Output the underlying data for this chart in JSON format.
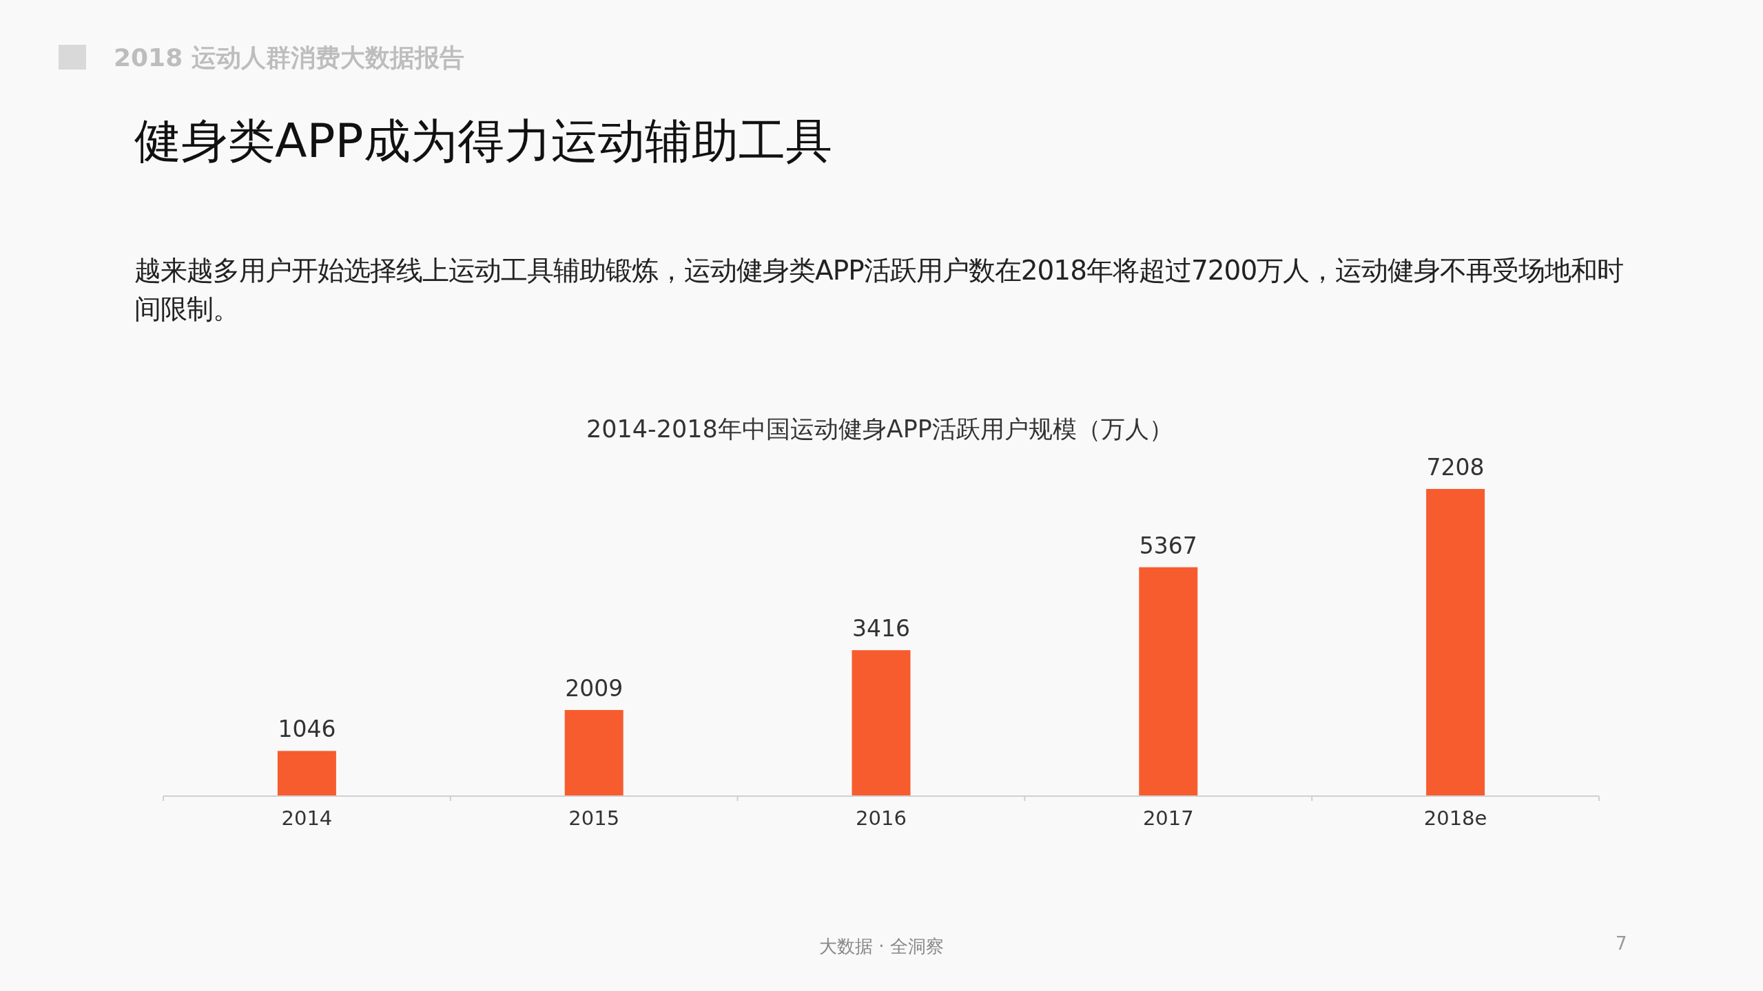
{
  "chart_data": {
    "type": "bar",
    "title": "2014-2018年中国运动健身APP活跃用户规模（万人）",
    "categories": [
      "2014",
      "2015",
      "2016",
      "2017",
      "2018e"
    ],
    "values": [
      1046,
      2009,
      3416,
      5367,
      7208
    ],
    "color": "#f75c2f",
    "data_labels": true,
    "annotations": [
      "2018 运动人群消费大数据报告",
      "健身类APP成为得力运动辅助工具",
      "越来越多用户开始选择线上运动工具辅助锻炼，运动健身类APP活跃用户数在2018年将超过7200万人，运动健身不再受场地和时间限制。",
      "大数据 · 全洞察",
      "7"
    ]
  }
}
